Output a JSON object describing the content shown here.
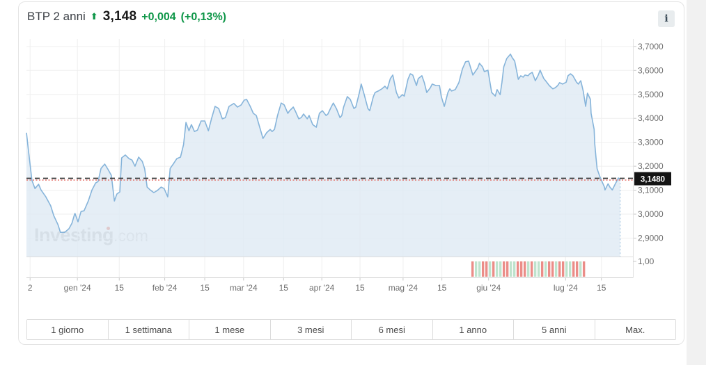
{
  "header": {
    "title": "BTP 2 anni",
    "price": "3,148",
    "change": "+0,004",
    "change_pct": "(+0,13%)"
  },
  "icons": {
    "trend_up": "⬆",
    "info": "i"
  },
  "watermark": {
    "name": "Investing",
    "domain": ".com"
  },
  "range_buttons": [
    "1 giorno",
    "1 settimana",
    "1 mese",
    "3 mesi",
    "6 mesi",
    "1 anno",
    "5 anni",
    "Max."
  ],
  "colors": {
    "positive_green": "#0e9648",
    "line": "#86b4da",
    "fill": "#dfeaf4",
    "dash_dark": "#3b3b3b",
    "dash_red": "#e2574e",
    "badge_bg": "#141414",
    "badge_text": "#ffffff",
    "volume_red": "#eb8d88",
    "volume_green": "#bfe3cd",
    "grid": "#efefef",
    "grid_strong": "#e2e2e2",
    "axis_text": "#6d6d6d",
    "tick": "#c9c9c9",
    "end_dotted": "#9dc0de"
  },
  "chart_data": {
    "type": "area",
    "instrument": "BTP 2 anni",
    "last_price": 3.148,
    "last_price_label": "3,1480",
    "ylim": [
      2.823,
      3.7315
    ],
    "grid": true,
    "legend": false,
    "y_ticks": [
      {
        "label": "3,7000",
        "v": 3.7
      },
      {
        "label": "3,6000",
        "v": 3.6
      },
      {
        "label": "3,5000",
        "v": 3.5
      },
      {
        "label": "3,4000",
        "v": 3.4
      },
      {
        "label": "3,3000",
        "v": 3.3
      },
      {
        "label": "3,2000",
        "v": 3.2
      },
      {
        "label": "3,1000",
        "v": 3.1
      },
      {
        "label": "3,0000",
        "v": 3.0
      },
      {
        "label": "2,9000",
        "v": 2.9
      }
    ],
    "sub_axis_label": "1,00",
    "x_ticks": [
      {
        "label": "2",
        "f": 0.006
      },
      {
        "label": "gen '24",
        "f": 0.084
      },
      {
        "label": "15",
        "f": 0.153
      },
      {
        "label": "feb '24",
        "f": 0.228
      },
      {
        "label": "15",
        "f": 0.294
      },
      {
        "label": "mar '24",
        "f": 0.358
      },
      {
        "label": "15",
        "f": 0.424
      },
      {
        "label": "apr '24",
        "f": 0.487
      },
      {
        "label": "15",
        "f": 0.55
      },
      {
        "label": "mag '24",
        "f": 0.621
      },
      {
        "label": "15",
        "f": 0.685
      },
      {
        "label": "giu '24",
        "f": 0.762
      },
      {
        "label": "lug '24",
        "f": 0.889
      },
      {
        "label": "15",
        "f": 0.948
      }
    ],
    "points": [
      [
        0.0,
        3.34
      ],
      [
        0.003,
        3.273
      ],
      [
        0.009,
        3.142
      ],
      [
        0.014,
        3.107
      ],
      [
        0.02,
        3.125
      ],
      [
        0.024,
        3.101
      ],
      [
        0.032,
        3.072
      ],
      [
        0.04,
        3.035
      ],
      [
        0.045,
        2.994
      ],
      [
        0.052,
        2.956
      ],
      [
        0.056,
        2.924
      ],
      [
        0.063,
        2.924
      ],
      [
        0.07,
        2.939
      ],
      [
        0.075,
        2.962
      ],
      [
        0.079,
        2.997
      ],
      [
        0.08,
        3.003
      ],
      [
        0.085,
        2.968
      ],
      [
        0.09,
        3.011
      ],
      [
        0.095,
        3.014
      ],
      [
        0.102,
        3.055
      ],
      [
        0.108,
        3.101
      ],
      [
        0.114,
        3.13
      ],
      [
        0.118,
        3.136
      ],
      [
        0.123,
        3.191
      ],
      [
        0.129,
        3.209
      ],
      [
        0.134,
        3.189
      ],
      [
        0.14,
        3.162
      ],
      [
        0.145,
        3.055
      ],
      [
        0.149,
        3.084
      ],
      [
        0.154,
        3.093
      ],
      [
        0.157,
        3.235
      ],
      [
        0.163,
        3.247
      ],
      [
        0.169,
        3.232
      ],
      [
        0.174,
        3.226
      ],
      [
        0.179,
        3.2
      ],
      [
        0.185,
        3.238
      ],
      [
        0.191,
        3.22
      ],
      [
        0.195,
        3.189
      ],
      [
        0.199,
        3.113
      ],
      [
        0.204,
        3.101
      ],
      [
        0.21,
        3.09
      ],
      [
        0.216,
        3.099
      ],
      [
        0.222,
        3.113
      ],
      [
        0.227,
        3.107
      ],
      [
        0.233,
        3.072
      ],
      [
        0.237,
        3.191
      ],
      [
        0.242,
        3.209
      ],
      [
        0.248,
        3.232
      ],
      [
        0.254,
        3.238
      ],
      [
        0.259,
        3.29
      ],
      [
        0.263,
        3.383
      ],
      [
        0.268,
        3.348
      ],
      [
        0.272,
        3.374
      ],
      [
        0.277,
        3.345
      ],
      [
        0.282,
        3.351
      ],
      [
        0.288,
        3.389
      ],
      [
        0.294,
        3.389
      ],
      [
        0.3,
        3.348
      ],
      [
        0.305,
        3.398
      ],
      [
        0.311,
        3.45
      ],
      [
        0.317,
        3.441
      ],
      [
        0.323,
        3.398
      ],
      [
        0.328,
        3.403
      ],
      [
        0.334,
        3.45
      ],
      [
        0.342,
        3.462
      ],
      [
        0.348,
        3.447
      ],
      [
        0.354,
        3.456
      ],
      [
        0.359,
        3.476
      ],
      [
        0.363,
        3.479
      ],
      [
        0.369,
        3.45
      ],
      [
        0.374,
        3.421
      ],
      [
        0.379,
        3.412
      ],
      [
        0.385,
        3.36
      ],
      [
        0.39,
        3.316
      ],
      [
        0.396,
        3.34
      ],
      [
        0.402,
        3.354
      ],
      [
        0.405,
        3.345
      ],
      [
        0.409,
        3.354
      ],
      [
        0.414,
        3.412
      ],
      [
        0.42,
        3.464
      ],
      [
        0.425,
        3.456
      ],
      [
        0.431,
        3.421
      ],
      [
        0.434,
        3.432
      ],
      [
        0.44,
        3.447
      ],
      [
        0.443,
        3.432
      ],
      [
        0.449,
        3.398
      ],
      [
        0.453,
        3.403
      ],
      [
        0.457,
        3.418
      ],
      [
        0.463,
        3.398
      ],
      [
        0.466,
        3.412
      ],
      [
        0.472,
        3.374
      ],
      [
        0.478,
        3.363
      ],
      [
        0.483,
        3.421
      ],
      [
        0.488,
        3.432
      ],
      [
        0.494,
        3.412
      ],
      [
        0.497,
        3.418
      ],
      [
        0.503,
        3.45
      ],
      [
        0.506,
        3.464
      ],
      [
        0.511,
        3.441
      ],
      [
        0.517,
        3.403
      ],
      [
        0.52,
        3.412
      ],
      [
        0.523,
        3.447
      ],
      [
        0.529,
        3.491
      ],
      [
        0.534,
        3.479
      ],
      [
        0.54,
        3.441
      ],
      [
        0.543,
        3.447
      ],
      [
        0.549,
        3.508
      ],
      [
        0.552,
        3.543
      ],
      [
        0.557,
        3.499
      ],
      [
        0.563,
        3.441
      ],
      [
        0.566,
        3.432
      ],
      [
        0.572,
        3.491
      ],
      [
        0.575,
        3.508
      ],
      [
        0.58,
        3.514
      ],
      [
        0.586,
        3.523
      ],
      [
        0.591,
        3.534
      ],
      [
        0.595,
        3.523
      ],
      [
        0.6,
        3.566
      ],
      [
        0.604,
        3.581
      ],
      [
        0.61,
        3.508
      ],
      [
        0.614,
        3.485
      ],
      [
        0.62,
        3.499
      ],
      [
        0.623,
        3.493
      ],
      [
        0.629,
        3.563
      ],
      [
        0.633,
        3.586
      ],
      [
        0.637,
        3.581
      ],
      [
        0.643,
        3.537
      ],
      [
        0.646,
        3.566
      ],
      [
        0.652,
        3.578
      ],
      [
        0.656,
        3.549
      ],
      [
        0.66,
        3.508
      ],
      [
        0.666,
        3.528
      ],
      [
        0.669,
        3.543
      ],
      [
        0.675,
        3.537
      ],
      [
        0.681,
        3.537
      ],
      [
        0.684,
        3.491
      ],
      [
        0.689,
        3.45
      ],
      [
        0.695,
        3.508
      ],
      [
        0.698,
        3.523
      ],
      [
        0.701,
        3.514
      ],
      [
        0.707,
        3.52
      ],
      [
        0.713,
        3.549
      ],
      [
        0.719,
        3.607
      ],
      [
        0.724,
        3.636
      ],
      [
        0.729,
        3.639
      ],
      [
        0.736,
        3.581
      ],
      [
        0.74,
        3.595
      ],
      [
        0.744,
        3.61
      ],
      [
        0.747,
        3.63
      ],
      [
        0.752,
        3.615
      ],
      [
        0.755,
        3.595
      ],
      [
        0.761,
        3.601
      ],
      [
        0.767,
        3.508
      ],
      [
        0.773,
        3.493
      ],
      [
        0.776,
        3.52
      ],
      [
        0.781,
        3.499
      ],
      [
        0.784,
        3.551
      ],
      [
        0.787,
        3.615
      ],
      [
        0.792,
        3.65
      ],
      [
        0.798,
        3.668
      ],
      [
        0.801,
        3.653
      ],
      [
        0.805,
        3.639
      ],
      [
        0.811,
        3.563
      ],
      [
        0.815,
        3.578
      ],
      [
        0.819,
        3.572
      ],
      [
        0.822,
        3.581
      ],
      [
        0.827,
        3.578
      ],
      [
        0.83,
        3.586
      ],
      [
        0.834,
        3.592
      ],
      [
        0.839,
        3.557
      ],
      [
        0.844,
        3.581
      ],
      [
        0.847,
        3.601
      ],
      [
        0.853,
        3.566
      ],
      [
        0.856,
        3.557
      ],
      [
        0.862,
        3.537
      ],
      [
        0.868,
        3.523
      ],
      [
        0.872,
        3.528
      ],
      [
        0.876,
        3.537
      ],
      [
        0.879,
        3.549
      ],
      [
        0.884,
        3.543
      ],
      [
        0.89,
        3.551
      ],
      [
        0.893,
        3.578
      ],
      [
        0.897,
        3.586
      ],
      [
        0.901,
        3.578
      ],
      [
        0.907,
        3.551
      ],
      [
        0.91,
        3.543
      ],
      [
        0.914,
        3.557
      ],
      [
        0.918,
        3.514
      ],
      [
        0.922,
        3.45
      ],
      [
        0.925,
        3.505
      ],
      [
        0.93,
        3.479
      ],
      [
        0.931,
        3.421
      ],
      [
        0.936,
        3.354
      ],
      [
        0.937,
        3.296
      ],
      [
        0.939,
        3.238
      ],
      [
        0.941,
        3.189
      ],
      [
        0.945,
        3.16
      ],
      [
        0.948,
        3.142
      ],
      [
        0.953,
        3.113
      ],
      [
        0.954,
        3.101
      ],
      [
        0.959,
        3.127
      ],
      [
        0.962,
        3.113
      ],
      [
        0.966,
        3.101
      ],
      [
        0.97,
        3.122
      ],
      [
        0.976,
        3.151
      ],
      [
        0.979,
        3.145
      ]
    ],
    "volume_region": {
      "start_frac": 0.7336,
      "step_frac": 0.00574,
      "pattern": "rggrrgrggrrggrrrgrggrgrrgrrggrrgr"
    }
  }
}
